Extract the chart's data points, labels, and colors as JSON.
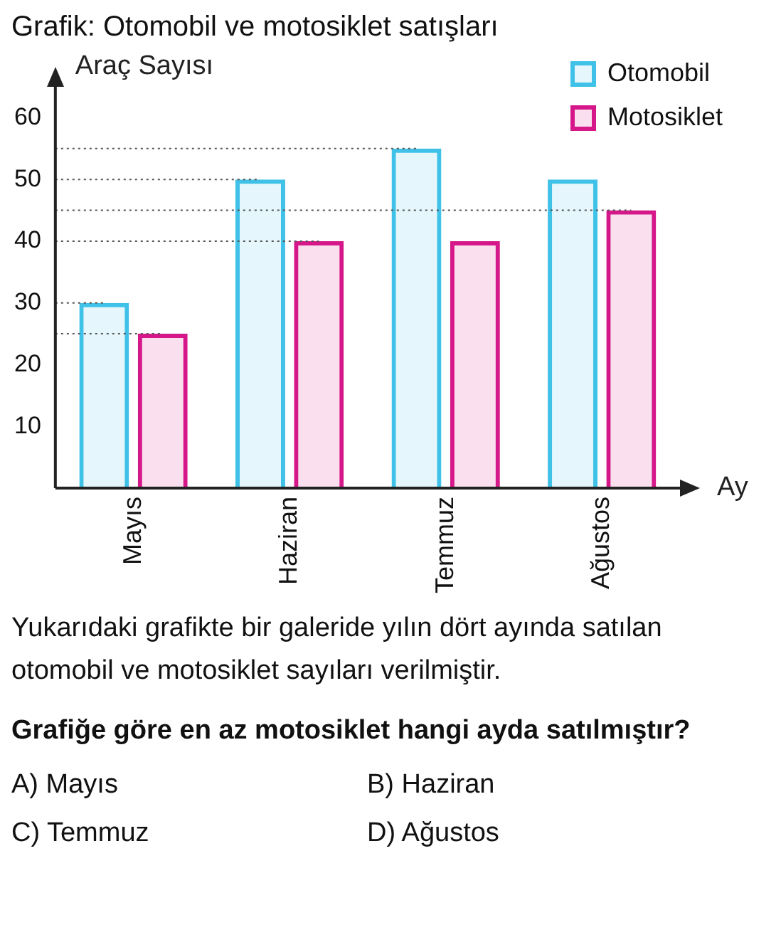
{
  "chart_data": {
    "type": "bar",
    "title": "Grafik: Otomobil ve motosiklet satışları",
    "xlabel": "Ay",
    "ylabel": "Araç Sayısı",
    "categories": [
      "Mayıs",
      "Haziran",
      "Temmuz",
      "Ağustos"
    ],
    "series": [
      {
        "name": "Otomobil",
        "color": "#3fc1e8",
        "values": [
          30,
          50,
          55,
          50
        ]
      },
      {
        "name": "Motosiklet",
        "color": "#d6178a",
        "values": [
          25,
          40,
          40,
          45
        ]
      }
    ],
    "ylim": [
      0,
      65
    ],
    "yticks": [
      10,
      20,
      30,
      40,
      50,
      60
    ],
    "grid": false,
    "legend": "top right",
    "ref_lines": [
      {
        "axis": "y",
        "value": 25,
        "line_style": "dotted"
      },
      {
        "axis": "y",
        "value": 30,
        "line_style": "dotted"
      },
      {
        "axis": "y",
        "value": 40,
        "line_style": "dotted"
      },
      {
        "axis": "y",
        "value": 45,
        "line_style": "dotted"
      },
      {
        "axis": "y",
        "value": 50,
        "line_style": "dotted"
      },
      {
        "axis": "y",
        "value": 55,
        "line_style": "dotted"
      }
    ],
    "annotations": [
      "Yukarıdaki grafikte bir galeride yılın dört ayında satılan otomobil ve motosiklet sayıları verilmiştir.",
      "Grafiğe göre en az motosiklet hangi ayda satılmıştır?",
      "A) Mayıs",
      "B) Haziran",
      "C) Temmuz",
      "D) Ağustos"
    ]
  }
}
